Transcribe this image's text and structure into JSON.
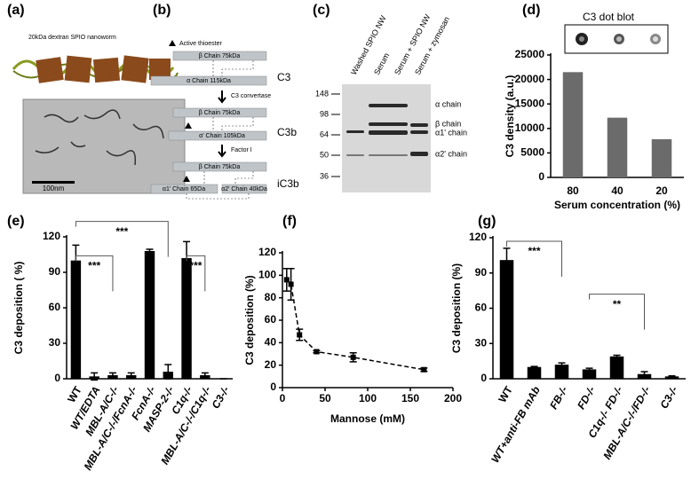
{
  "figure": {
    "a": {
      "label": "(a)",
      "caption": "20kDa dextran SPIO nanoworm",
      "scale_bar": "100nm"
    },
    "b": {
      "label": "(b)",
      "legend": "Active thioester",
      "c3": {
        "beta": "β Chain 75kDa",
        "alpha": "α Chain 115kDa",
        "name": "C3"
      },
      "step1": "C3 convertase",
      "c3b": {
        "beta": "β Chain 75kDa",
        "alpha": "α' Chain 105kDa",
        "name": "C3b"
      },
      "step2": "Factor I",
      "ic3b": {
        "beta": "β Chain 75kDa",
        "alpha1": "α1' Chain 65Da",
        "alpha2": "α2' Chain 40kDa",
        "name": "iC3b"
      }
    },
    "c": {
      "label": "(c)",
      "lanes": [
        "Washed SPIO NW",
        "Serum",
        "Serum + SPIO NW",
        "Serum + zymosan"
      ],
      "markers": [
        148,
        98,
        64,
        50,
        36
      ],
      "bands": [
        "α chain",
        "β chain",
        "α1' chain",
        "α2' chain"
      ]
    }
  },
  "chart_data": [
    {
      "type": "bar",
      "label": "(d)",
      "title": "C3 dot blot",
      "ylabel": "C3 density (a.u.)",
      "xlabel": "Serum concentration (%)",
      "categories": [
        "80",
        "40",
        "20"
      ],
      "values": [
        21500,
        12200,
        7800
      ],
      "color": "#6b6b6b",
      "ylim": [
        0,
        25000
      ],
      "yticks": [
        0,
        5000,
        10000,
        15000,
        20000,
        25000
      ]
    },
    {
      "type": "bar",
      "label": "(e)",
      "ylabel": "C3 deposition ( %)",
      "categories": [
        "WT",
        "WT/EDTA",
        "MBL-A/C-/-",
        "MBL-A/C-/-/FcnA-/-",
        "FcnA-/-",
        "MASP-2-/-",
        "C1q-/-",
        "MBL-A/C-/-/C1q-/-",
        "C3-/-"
      ],
      "values": [
        100,
        2,
        3,
        3,
        108,
        6,
        102,
        3,
        0
      ],
      "errors": [
        13,
        3,
        2,
        2,
        1.5,
        6,
        14,
        2,
        0
      ],
      "color": "#000000",
      "annotations": [
        "***",
        "***",
        "***"
      ],
      "ylim": [
        0,
        120
      ],
      "yticks": [
        0,
        30,
        60,
        90,
        120
      ]
    },
    {
      "type": "line",
      "label": "(f)",
      "ylabel": "C3 deposition (%)",
      "xlabel": "Mannose (mM)",
      "x": [
        5,
        10,
        20,
        40,
        83,
        166
      ],
      "values": [
        96,
        92,
        47,
        32,
        27,
        16
      ],
      "errors": [
        10,
        14,
        5,
        1,
        4,
        1.5
      ],
      "color": "#000000",
      "xlim": [
        0,
        200
      ],
      "xticks": [
        0,
        50,
        100,
        150,
        200
      ],
      "ylim": [
        0,
        120
      ],
      "yticks": [
        0,
        20,
        40,
        60,
        80,
        100,
        120
      ]
    },
    {
      "type": "bar",
      "label": "(g)",
      "ylabel": "C3 deposition (%)",
      "categories": [
        "WT",
        "WT+anti-FB mAb",
        "FB-/-",
        "FD-/-",
        "C1q-/- FD-/-",
        "MBL-A/C-/-/FD-/-",
        "C3-/-"
      ],
      "values": [
        101,
        10,
        12,
        8,
        19,
        4,
        2
      ],
      "errors": [
        10,
        0.5,
        1.5,
        1,
        1,
        2,
        0.5
      ],
      "color": "#000000",
      "annotations": [
        "***",
        "**"
      ],
      "ylim": [
        0,
        120
      ],
      "yticks": [
        0,
        30,
        60,
        90,
        120
      ]
    }
  ]
}
